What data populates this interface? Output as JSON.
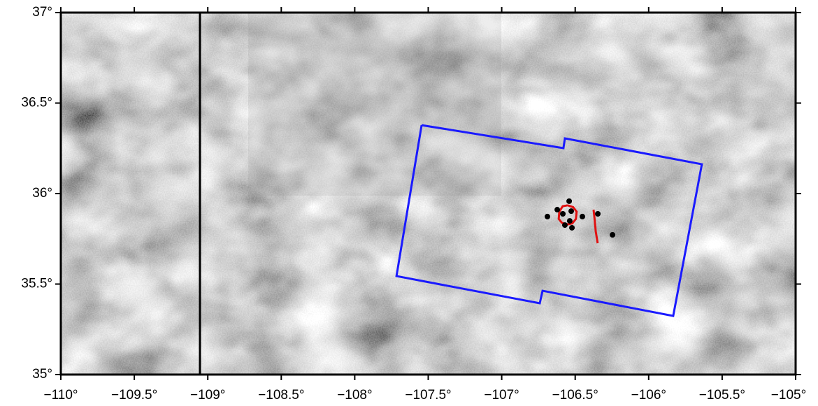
{
  "chart_data": {
    "type": "map",
    "xlim": [
      -110,
      -105
    ],
    "ylim": [
      35,
      37
    ],
    "xticks": [
      {
        "value": -110,
        "label": "−110°"
      },
      {
        "value": -109.5,
        "label": "−109.5°"
      },
      {
        "value": -109,
        "label": "−109°"
      },
      {
        "value": -108.5,
        "label": "−108.5°"
      },
      {
        "value": -108,
        "label": "−108°"
      },
      {
        "value": -107.5,
        "label": "−107.5°"
      },
      {
        "value": -107,
        "label": "−107°"
      },
      {
        "value": -106.5,
        "label": "−106.5°"
      },
      {
        "value": -106,
        "label": "−106°"
      },
      {
        "value": -105.5,
        "label": "−105.5°"
      },
      {
        "value": -105,
        "label": "−105°"
      }
    ],
    "yticks": [
      {
        "value": 35,
        "label": "35°"
      },
      {
        "value": 35.5,
        "label": "35.5°"
      },
      {
        "value": 36,
        "label": "36°"
      },
      {
        "value": 36.5,
        "label": "36.5°"
      },
      {
        "value": 37,
        "label": "37°"
      }
    ],
    "polygon": {
      "color": "#1a1aff",
      "lon": [
        -107.545,
        -106.58,
        -106.57,
        -105.638,
        -105.833,
        -106.722,
        -106.741,
        -107.716,
        -107.545
      ],
      "lat": [
        36.378,
        36.251,
        36.305,
        36.162,
        35.324,
        35.463,
        35.394,
        35.544,
        36.378
      ]
    },
    "lines": [
      {
        "color": "#e01010",
        "lon": [
          -106.551,
          -106.514,
          -106.49,
          -106.495,
          -106.52,
          -106.551,
          -106.59,
          -106.612,
          -106.608,
          -106.585,
          -106.551
        ],
        "lat": [
          35.935,
          35.925,
          35.9,
          35.86,
          35.835,
          35.83,
          35.838,
          35.86,
          35.9,
          35.93,
          35.935
        ]
      },
      {
        "color": "#e01010",
        "lon": [
          -106.375,
          -106.368,
          -106.36,
          -106.347
        ],
        "lat": [
          35.911,
          35.86,
          35.79,
          35.726
        ]
      }
    ],
    "points": {
      "color": "#000000",
      "lon": [
        -106.689,
        -106.622,
        -106.541,
        -106.584,
        -106.527,
        -106.537,
        -106.451,
        -106.57,
        -106.522,
        -106.346,
        -106.246
      ],
      "lat": [
        35.873,
        35.911,
        35.958,
        35.888,
        35.903,
        35.849,
        35.873,
        35.826,
        35.811,
        35.888,
        35.772
      ]
    }
  }
}
